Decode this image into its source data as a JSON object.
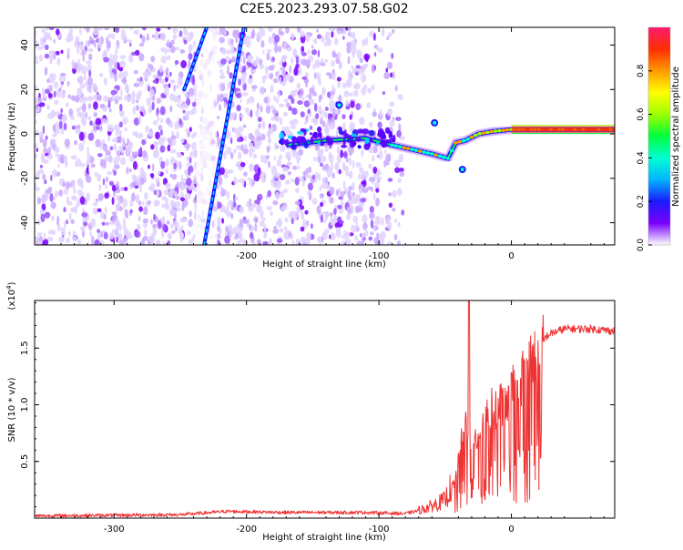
{
  "title": "C2E5.2023.293.07.58.G02",
  "chart_data": [
    {
      "type": "heatmap",
      "xlabel": "Height of straight line (km)",
      "ylabel": "Frequency (Hz)",
      "xlim": [
        -360,
        78
      ],
      "ylim": [
        -50,
        48
      ],
      "xticks": [
        "-300",
        "-200",
        "-100",
        "0"
      ],
      "xtick_values": [
        -300,
        -200,
        -100,
        0
      ],
      "yticks": [
        "-40",
        "-20",
        "0",
        "20",
        "40"
      ],
      "ytick_values": [
        -40,
        -20,
        0,
        20,
        40
      ],
      "colorbar": {
        "label": "Normalized spectral amplitude",
        "range": [
          0,
          1
        ],
        "ticks": [
          "0.0",
          "0.2",
          "0.4",
          "0.6",
          "0.8"
        ],
        "tick_values": [
          0.0,
          0.2,
          0.4,
          0.6,
          0.8
        ],
        "colors": [
          "#ffffff",
          "#c9a8ff",
          "#7a00ff",
          "#1a1aff",
          "#00b4ff",
          "#00ffd2",
          "#00ff3c",
          "#9cff00",
          "#ffff00",
          "#ff9a00",
          "#ff2d00",
          "#ff1a6e"
        ]
      },
      "features": {
        "noise_region_x": [
          -360,
          -82
        ],
        "diagonal_streaks": [
          {
            "x_start": -232,
            "y_start": -50,
            "x_end": -202,
            "y_end": 48
          },
          {
            "x_start": -247,
            "y_start": 20,
            "x_end": -230,
            "y_end": 48
          }
        ],
        "main_trace": [
          {
            "x": -170,
            "y": -5
          },
          {
            "x": -140,
            "y": -3
          },
          {
            "x": -110,
            "y": -2
          },
          {
            "x": -90,
            "y": -5
          },
          {
            "x": -75,
            "y": -7
          },
          {
            "x": -60,
            "y": -9
          },
          {
            "x": -48,
            "y": -11
          },
          {
            "x": -42,
            "y": -4
          },
          {
            "x": -35,
            "y": -3
          },
          {
            "x": -25,
            "y": 0
          },
          {
            "x": -15,
            "y": 1
          },
          {
            "x": 0,
            "y": 2
          },
          {
            "x": 30,
            "y": 2
          },
          {
            "x": 78,
            "y": 2
          }
        ],
        "blobs": [
          {
            "x": -130,
            "y": 13
          },
          {
            "x": -58,
            "y": 5
          },
          {
            "x": -37,
            "y": -16
          }
        ]
      }
    },
    {
      "type": "line",
      "xlabel": "Height of straight line (km)",
      "ylabel": "SNR (10 * v/v)",
      "multiplier": "(x10",
      "multiplier_exp": "4",
      "multiplier_close": ")",
      "xlim": [
        -360,
        78
      ],
      "ylim": [
        0,
        1.92
      ],
      "xticks": [
        "-300",
        "-200",
        "-100",
        "0"
      ],
      "xtick_values": [
        -300,
        -200,
        -100,
        0
      ],
      "yticks": [
        "0.5",
        "1.0",
        "1.5"
      ],
      "ytick_values": [
        0.5,
        1.0,
        1.5
      ],
      "color": "#ee3333",
      "envelope": [
        {
          "x": -360,
          "y": 0.02
        },
        {
          "x": -250,
          "y": 0.03
        },
        {
          "x": -215,
          "y": 0.06
        },
        {
          "x": -170,
          "y": 0.05
        },
        {
          "x": -110,
          "y": 0.05
        },
        {
          "x": -80,
          "y": 0.04
        },
        {
          "x": -65,
          "y": 0.08
        },
        {
          "x": -50,
          "y": 0.15
        },
        {
          "x": -42,
          "y": 0.35
        },
        {
          "x": -35,
          "y": 0.9
        },
        {
          "x": -28,
          "y": 0.7
        },
        {
          "x": -20,
          "y": 0.95
        },
        {
          "x": -10,
          "y": 1.05
        },
        {
          "x": 0,
          "y": 1.15
        },
        {
          "x": 10,
          "y": 1.35
        },
        {
          "x": 20,
          "y": 1.55
        },
        {
          "x": 30,
          "y": 1.63
        },
        {
          "x": 40,
          "y": 1.67
        },
        {
          "x": 60,
          "y": 1.67
        },
        {
          "x": 78,
          "y": 1.65
        }
      ],
      "peak": {
        "x": -32,
        "y": 1.92
      }
    }
  ]
}
